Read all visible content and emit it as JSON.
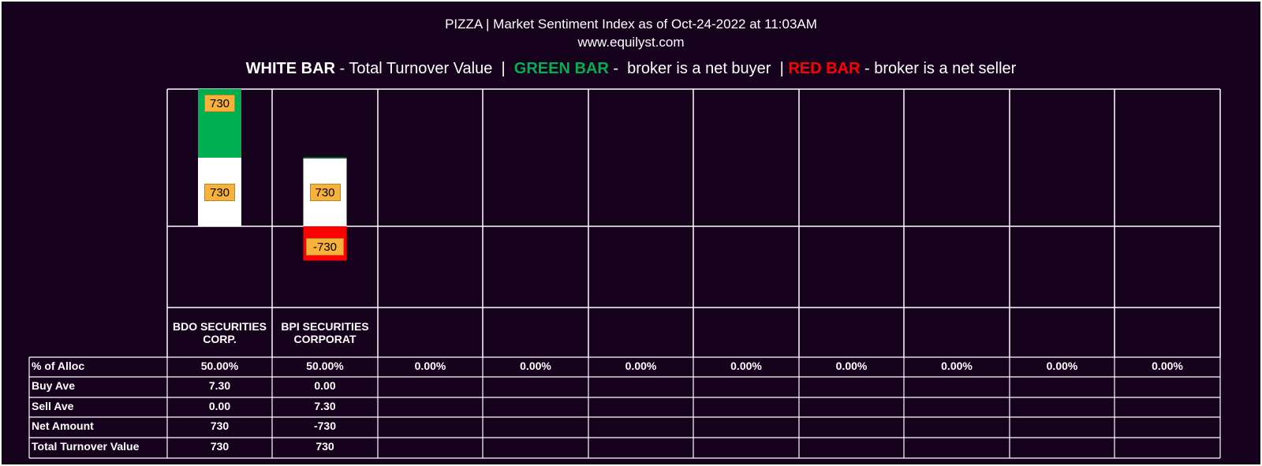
{
  "header": {
    "title": "PIZZA | Market Sentiment Index as of Oct-24-2022 at 11:03AM",
    "site": "www.equilyst.com"
  },
  "legend": {
    "white_bar": "WHITE BAR",
    "white_desc": " - Total Turnover Value  |  ",
    "green_bar": "GREEN BAR",
    "green_desc": " -  broker is a net buyer  | ",
    "red_bar": "RED BAR",
    "red_desc": " - broker is a net seller"
  },
  "colors": {
    "background": "#17021e",
    "white_bar": "#ffffff",
    "green_bar": "#00b050",
    "red_bar": "#ff0000",
    "label_bg": "#f7b23b",
    "grid": "#ffffff"
  },
  "chart_data": {
    "type": "bar",
    "categories": [
      "BDO SECURITIES CORP.",
      "BPI SECURITIES CORPORAT",
      "",
      "",
      "",
      "",
      "",
      "",
      "",
      ""
    ],
    "series": [
      {
        "name": "WHITE BAR",
        "values": [
          730,
          730,
          0,
          0,
          0,
          0,
          0,
          0,
          0,
          0
        ]
      },
      {
        "name": "GREEN BAR",
        "values": [
          730,
          0,
          0,
          0,
          0,
          0,
          0,
          0,
          0,
          0
        ]
      },
      {
        "name": "RED BAR",
        "values": [
          0,
          -730,
          0,
          0,
          0,
          0,
          0,
          0,
          0,
          0
        ]
      }
    ],
    "data_labels": {
      "white": [
        "730",
        "730"
      ],
      "green": [
        "730"
      ],
      "red": [
        "",
        "-730"
      ]
    },
    "ylim": [
      -730,
      1460
    ]
  },
  "table": {
    "rows": [
      {
        "label": "% of Alloc",
        "values": [
          "50.00%",
          "50.00%",
          "0.00%",
          "0.00%",
          "0.00%",
          "0.00%",
          "0.00%",
          "0.00%",
          "0.00%",
          "0.00%"
        ]
      },
      {
        "label": "Buy Ave",
        "values": [
          "7.30",
          "0.00",
          "",
          "",
          "",
          "",
          "",
          "",
          "",
          ""
        ]
      },
      {
        "label": "Sell Ave",
        "values": [
          "0.00",
          "7.30",
          "",
          "",
          "",
          "",
          "",
          "",
          "",
          ""
        ]
      },
      {
        "label": "Net Amount",
        "values": [
          "730",
          "-730",
          "",
          "",
          "",
          "",
          "",
          "",
          "",
          ""
        ]
      },
      {
        "label": "Total Turnover Value",
        "values": [
          "730",
          "730",
          "",
          "",
          "",
          "",
          "",
          "",
          "",
          ""
        ]
      }
    ]
  }
}
